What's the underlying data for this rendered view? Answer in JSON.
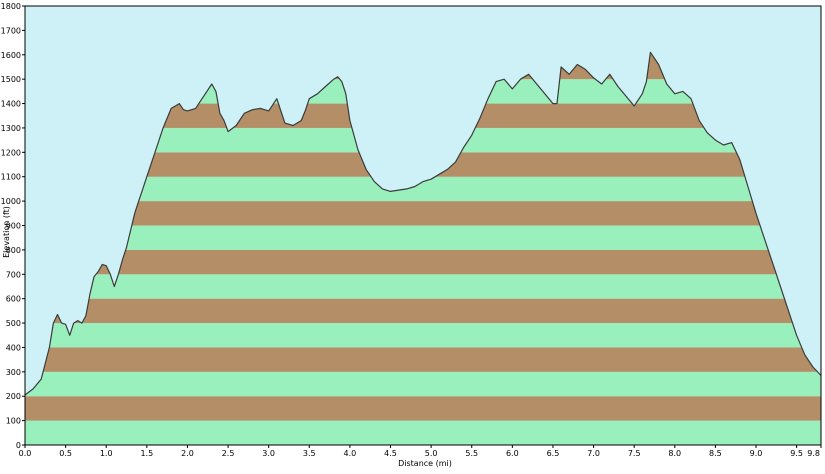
{
  "chart_data": {
    "type": "area",
    "title": "",
    "xlabel": "Distance   (mi)",
    "ylabel": "Elevation (ft)",
    "xlim": [
      0,
      9.8
    ],
    "ylim": [
      0,
      1800
    ],
    "x_ticks": [
      "0.0",
      "0.5",
      "1.0",
      "1.5",
      "2.0",
      "2.5",
      "3.0",
      "3.5",
      "4.0",
      "4.5",
      "5.0",
      "5.5",
      "6.0",
      "6.5",
      "7.0",
      "7.5",
      "8.0",
      "8.5",
      "9.0",
      "9.5",
      "9.8"
    ],
    "x_tick_values": [
      0,
      0.5,
      1.0,
      1.5,
      2.0,
      2.5,
      3.0,
      3.5,
      4.0,
      4.5,
      5.0,
      5.5,
      6.0,
      6.5,
      7.0,
      7.5,
      8.0,
      8.5,
      9.0,
      9.5,
      9.8
    ],
    "y_ticks": [
      "0",
      "100",
      "200",
      "300",
      "400",
      "500",
      "600",
      "700",
      "800",
      "900",
      "1000",
      "1100",
      "1200",
      "1300",
      "1400",
      "1500",
      "1600",
      "1700",
      "1800"
    ],
    "y_tick_values": [
      0,
      100,
      200,
      300,
      400,
      500,
      600,
      700,
      800,
      900,
      1000,
      1100,
      1200,
      1300,
      1400,
      1500,
      1600,
      1700,
      1800
    ],
    "grid": true,
    "band_interval": 100,
    "colors": {
      "sky": "#cdf1f6",
      "band_light": "#9af0bc",
      "band_dark": "#b48e66",
      "line": "#3b3b3b",
      "frame": "#000000"
    },
    "series": [
      {
        "x": [
          0.0,
          0.1,
          0.2,
          0.3,
          0.35,
          0.4,
          0.45,
          0.5,
          0.55,
          0.6,
          0.65,
          0.7,
          0.75,
          0.8,
          0.85,
          0.9,
          0.95,
          1.0,
          1.05,
          1.1,
          1.15,
          1.2,
          1.25,
          1.3,
          1.35,
          1.4,
          1.45,
          1.5,
          1.6,
          1.7,
          1.8,
          1.9,
          1.95,
          2.0,
          2.1,
          2.2,
          2.3,
          2.35,
          2.4,
          2.45,
          2.5,
          2.6,
          2.7,
          2.8,
          2.9,
          3.0,
          3.1,
          3.2,
          3.3,
          3.4,
          3.45,
          3.5,
          3.6,
          3.7,
          3.8,
          3.85,
          3.9,
          3.95,
          4.0,
          4.1,
          4.2,
          4.3,
          4.4,
          4.5,
          4.6,
          4.7,
          4.8,
          4.9,
          5.0,
          5.1,
          5.2,
          5.3,
          5.4,
          5.5,
          5.6,
          5.7,
          5.8,
          5.9,
          6.0,
          6.1,
          6.2,
          6.3,
          6.4,
          6.5,
          6.55,
          6.6,
          6.7,
          6.8,
          6.9,
          7.0,
          7.1,
          7.2,
          7.3,
          7.4,
          7.5,
          7.6,
          7.65,
          7.7,
          7.8,
          7.9,
          8.0,
          8.1,
          8.2,
          8.3,
          8.4,
          8.5,
          8.6,
          8.7,
          8.8,
          8.9,
          9.0,
          9.1,
          9.2,
          9.3,
          9.4,
          9.5,
          9.6,
          9.7,
          9.8
        ],
        "y": [
          205,
          230,
          270,
          400,
          500,
          535,
          500,
          495,
          450,
          500,
          510,
          500,
          530,
          620,
          690,
          710,
          740,
          735,
          700,
          650,
          700,
          760,
          810,
          880,
          950,
          1000,
          1050,
          1100,
          1200,
          1300,
          1380,
          1400,
          1375,
          1370,
          1380,
          1430,
          1480,
          1450,
          1360,
          1330,
          1285,
          1310,
          1360,
          1375,
          1380,
          1370,
          1420,
          1320,
          1310,
          1330,
          1370,
          1420,
          1440,
          1470,
          1500,
          1510,
          1490,
          1440,
          1330,
          1210,
          1130,
          1080,
          1050,
          1040,
          1045,
          1050,
          1060,
          1080,
          1090,
          1110,
          1130,
          1160,
          1220,
          1270,
          1340,
          1420,
          1490,
          1500,
          1460,
          1500,
          1520,
          1480,
          1440,
          1400,
          1400,
          1550,
          1520,
          1560,
          1540,
          1505,
          1480,
          1520,
          1470,
          1430,
          1390,
          1440,
          1490,
          1610,
          1560,
          1480,
          1440,
          1450,
          1420,
          1330,
          1280,
          1250,
          1230,
          1240,
          1170,
          1060,
          950,
          850,
          750,
          650,
          550,
          450,
          370,
          320,
          285
        ]
      }
    ]
  }
}
